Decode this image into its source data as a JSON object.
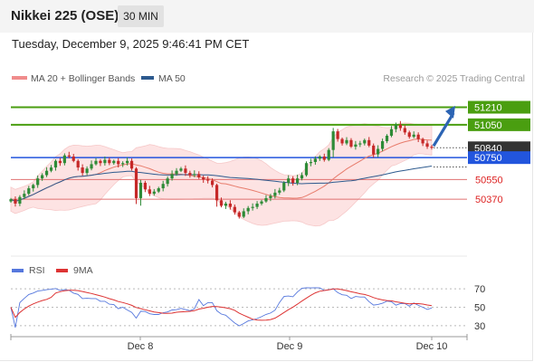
{
  "header": {
    "title": "Nikkei 225 (OSE)",
    "timeframe": "30 MIN",
    "datetime": "Tuesday, December 9, 2025 9:46:41 PM CET"
  },
  "legend": {
    "ma20_bb": "MA 20 + Bollinger Bands",
    "ma50": "MA 50",
    "rsi": "RSI",
    "ma9": "9MA",
    "credit": "Research © 2025 Trading Central"
  },
  "colors": {
    "green_level": "#4a9e10",
    "blue_level": "#2255dd",
    "red_level": "#e07070",
    "current_price_bg": "#333333",
    "bollinger_fill": "#fde3e3",
    "ma20": "#e87c6c",
    "ma50": "#2d5a8e",
    "bull_candle": "#2e8b37",
    "bear_candle": "#c62828",
    "rsi_line": "#5577dd",
    "ma9_line": "#dd3333",
    "arrow": "#2c64b4"
  },
  "chart_data": [
    {
      "type": "candlestick",
      "title": "Nikkei 225 (OSE)",
      "x_ticks": [
        "Dec 8",
        "Dec 9",
        "Dec 10"
      ],
      "ylim": [
        49900,
        51330
      ],
      "levels": [
        {
          "value": 51210,
          "label": "51210",
          "kind": "resistance",
          "color": "#4a9e10"
        },
        {
          "value": 51050,
          "label": "51050",
          "kind": "resistance",
          "color": "#4a9e10"
        },
        {
          "value": 50840,
          "label": "50840",
          "kind": "current",
          "color": "#333333"
        },
        {
          "value": 50750,
          "label": "50750",
          "kind": "pivot",
          "color": "#2255dd"
        },
        {
          "value": 50550,
          "label": "50550",
          "kind": "support",
          "color": "#e07070"
        },
        {
          "value": 50370,
          "label": "50370",
          "kind": "support",
          "color": "#e07070"
        }
      ],
      "close": [
        50370,
        50330,
        50390,
        50420,
        50470,
        50500,
        50560,
        50590,
        50630,
        50660,
        50720,
        50700,
        50770,
        50760,
        50720,
        50660,
        50610,
        50650,
        50690,
        50720,
        50700,
        50730,
        50700,
        50720,
        50690,
        50700,
        50720,
        50650,
        50380,
        50520,
        50460,
        50420,
        50440,
        50470,
        50510,
        50560,
        50600,
        50630,
        50650,
        50610,
        50590,
        50600,
        50570,
        50550,
        50540,
        50500,
        50360,
        50310,
        50330,
        50300,
        50250,
        50210,
        50260,
        50290,
        50300,
        50330,
        50350,
        50380,
        50400,
        50430,
        50450,
        50520,
        50560,
        50520,
        50560,
        50590,
        50700,
        50710,
        50740,
        50760,
        50730,
        50820,
        50990,
        50920,
        50880,
        50910,
        50850,
        50870,
        50880,
        50910,
        50860,
        50780,
        50830,
        50900,
        50950,
        51010,
        51050,
        51020,
        50980,
        50940,
        50960,
        50920,
        50880,
        50850,
        50840
      ],
      "ma20_description": "MA 20 with Bollinger Bands (shaded envelope)",
      "ma50_description": "MA 50"
    },
    {
      "type": "line",
      "title": "RSI",
      "x_ticks": [
        "Dec 8",
        "Dec 9",
        "Dec 10"
      ],
      "ylim": [
        20,
        80
      ],
      "y_ticks": [
        70,
        50,
        30
      ],
      "series": [
        {
          "name": "RSI",
          "color": "#5577dd"
        },
        {
          "name": "9MA",
          "color": "#dd3333"
        }
      ]
    }
  ]
}
